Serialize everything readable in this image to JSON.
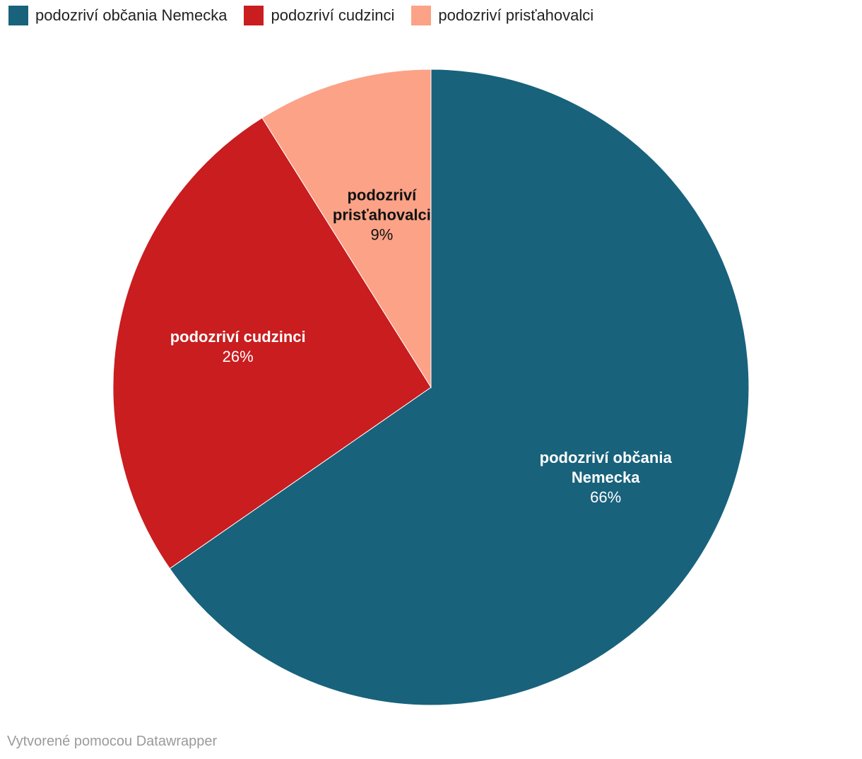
{
  "chart_data": {
    "type": "pie",
    "categories": [
      "podozriví občania Nemecka",
      "podozriví cudzinci",
      "podozriví prisťahovalci"
    ],
    "values": [
      66,
      26,
      9
    ],
    "value_labels": [
      "66%",
      "26%",
      "9%"
    ],
    "slice_labels": [
      [
        "podozriví občania",
        "Nemecka"
      ],
      [
        "podozriví cudzinci"
      ],
      [
        "podozriví",
        "prisťahovalci"
      ]
    ],
    "colors": [
      "#18627c",
      "#c91d1f",
      "#fca287"
    ],
    "label_colors": [
      "#ffffff",
      "#ffffff",
      "#111111"
    ],
    "legend_position": "top-left",
    "start_angle_clockwise_from_top": 0
  },
  "legend": {
    "items": [
      {
        "label": "podozriví občania Nemecka",
        "color": "#18627c"
      },
      {
        "label": "podozriví cudzinci",
        "color": "#c91d1f"
      },
      {
        "label": "podozriví prisťahovalci",
        "color": "#fca287"
      }
    ]
  },
  "footer": {
    "credit": "Vytvorené pomocou Datawrapper"
  }
}
